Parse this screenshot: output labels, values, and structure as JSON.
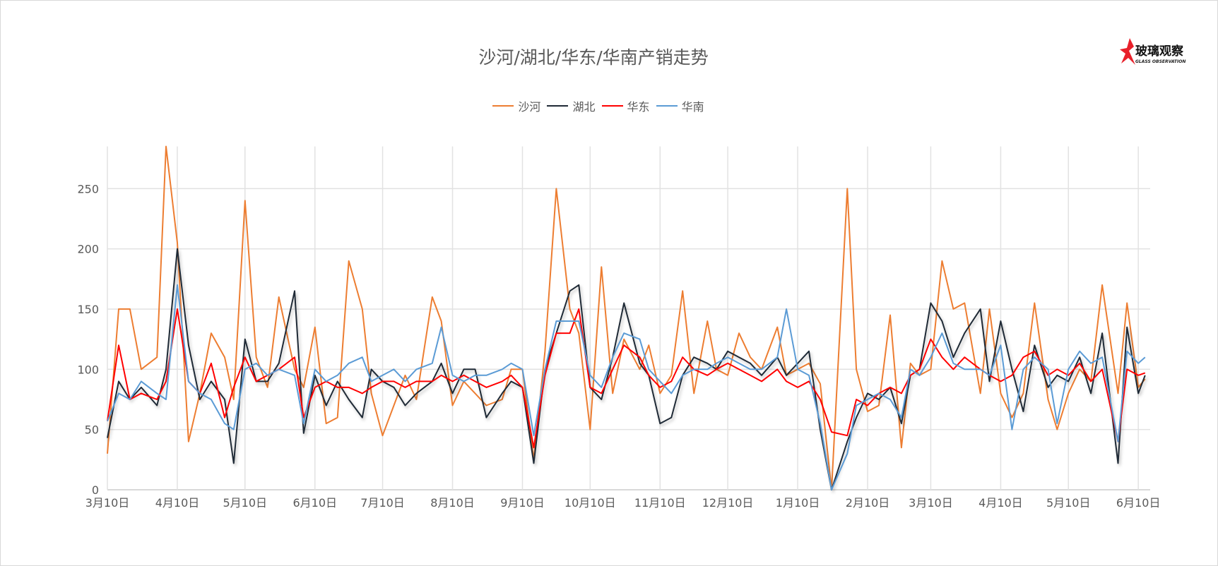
{
  "logo": {
    "text_cn": "玻璃观察",
    "text_en": "GLASS OBSERVATION"
  },
  "chart_data": {
    "type": "line",
    "title": "沙河/湖北/华东/华南产销走势",
    "legend_position": "top",
    "grid": true,
    "ylim": [
      0,
      285
    ],
    "y_ticks": [
      "0",
      "50",
      "100",
      "150",
      "200",
      "250"
    ],
    "x_ticks": [
      "3月10日",
      "4月10日",
      "5月10日",
      "6月10日",
      "7月10日",
      "8月10日",
      "9月10日",
      "10月10日",
      "11月10日",
      "12月10日",
      "1月10日",
      "2月10日",
      "3月10日",
      "4月10日",
      "5月10日",
      "6月10日"
    ],
    "x": [
      "3月10日",
      "3月15日",
      "3月20日",
      "3月25日",
      "4月1日",
      "4月5日",
      "4月10日",
      "4月15日",
      "4月20日",
      "4月25日",
      "5月1日",
      "5月5日",
      "5月10日",
      "5月15日",
      "5月20日",
      "5月25日",
      "6月1日",
      "6月5日",
      "6月10日",
      "6月15日",
      "6月20日",
      "6月25日",
      "7月1日",
      "7月5日",
      "7月10日",
      "7月15日",
      "7月20日",
      "7月25日",
      "8月1日",
      "8月5日",
      "8月10日",
      "8月15日",
      "8月20日",
      "8月25日",
      "9月1日",
      "9月5日",
      "9月10日",
      "9月15日",
      "9月20日",
      "9月25日",
      "10月1日",
      "10月5日",
      "10月10日",
      "10月15日",
      "10月20日",
      "10月25日",
      "11月1日",
      "11月5日",
      "11月10日",
      "11月15日",
      "11月20日",
      "11月25日",
      "12月1日",
      "12月5日",
      "12月10日",
      "12月15日",
      "12月20日",
      "12月25日",
      "1月1日",
      "1月5日",
      "1月10日",
      "1月15日",
      "1月20日",
      "1月25日",
      "2月1日",
      "2月5日",
      "2月10日",
      "2月15日",
      "2月20日",
      "2月25日",
      "3月1日",
      "3月5日",
      "3月10日",
      "3月15日",
      "3月20日",
      "3月25日",
      "4月1日",
      "4月5日",
      "4月10日",
      "4月15日",
      "4月20日",
      "4月25日",
      "5月1日",
      "5月5日",
      "5月10日",
      "5月15日",
      "5月20日",
      "5月25日",
      "6月1日",
      "6月5日",
      "6月10日",
      "6月13日"
    ],
    "series": [
      {
        "name": "沙河",
        "color": "#ed7d31",
        "values": [
          30,
          150,
          150,
          100,
          110,
          285,
          205,
          40,
          80,
          130,
          110,
          75,
          240,
          110,
          85,
          160,
          100,
          85,
          135,
          55,
          60,
          190,
          150,
          80,
          45,
          70,
          95,
          75,
          160,
          140,
          70,
          90,
          80,
          70,
          75,
          100,
          100,
          25,
          115,
          250,
          150,
          130,
          50,
          185,
          80,
          125,
          100,
          120,
          80,
          95,
          165,
          80,
          140,
          100,
          95,
          130,
          110,
          100,
          135,
          95,
          100,
          105,
          88,
          0,
          250,
          100,
          65,
          70,
          145,
          35,
          105,
          95,
          100,
          190,
          150,
          155,
          80,
          150,
          80,
          60,
          80,
          155,
          75,
          50,
          80,
          100,
          90,
          170,
          80,
          155,
          85,
          92
        ]
      },
      {
        "name": "湖北",
        "color": "#1f2a36",
        "values": [
          43,
          90,
          75,
          85,
          70,
          100,
          200,
          120,
          75,
          90,
          75,
          22,
          125,
          90,
          90,
          105,
          165,
          47,
          95,
          70,
          90,
          75,
          60,
          100,
          90,
          85,
          70,
          80,
          90,
          105,
          80,
          100,
          100,
          60,
          80,
          90,
          85,
          22,
          100,
          130,
          165,
          170,
          85,
          75,
          110,
          155,
          105,
          95,
          55,
          60,
          95,
          110,
          105,
          100,
          115,
          110,
          105,
          95,
          110,
          95,
          105,
          115,
          50,
          0,
          40,
          60,
          80,
          75,
          85,
          55,
          95,
          100,
          155,
          140,
          110,
          130,
          150,
          90,
          140,
          100,
          65,
          120,
          85,
          95,
          90,
          110,
          80,
          130,
          22,
          135,
          80,
          95
        ]
      },
      {
        "name": "华东",
        "color": "#ff0000",
        "values": [
          57,
          120,
          75,
          80,
          75,
          90,
          150,
          90,
          80,
          105,
          60,
          85,
          110,
          90,
          95,
          100,
          110,
          60,
          85,
          90,
          85,
          85,
          80,
          85,
          90,
          90,
          85,
          90,
          90,
          95,
          90,
          95,
          90,
          85,
          90,
          95,
          85,
          35,
          95,
          130,
          130,
          150,
          85,
          80,
          100,
          120,
          110,
          95,
          85,
          90,
          110,
          100,
          95,
          100,
          105,
          100,
          95,
          90,
          100,
          90,
          85,
          90,
          75,
          48,
          45,
          75,
          70,
          80,
          85,
          80,
          95,
          100,
          125,
          110,
          100,
          110,
          100,
          95,
          90,
          95,
          110,
          115,
          95,
          100,
          95,
          105,
          90,
          100,
          40,
          100,
          95,
          97
        ]
      },
      {
        "name": "华南",
        "color": "#5b9bd5",
        "values": [
          57,
          80,
          75,
          90,
          80,
          75,
          170,
          90,
          80,
          75,
          55,
          50,
          100,
          105,
          95,
          100,
          95,
          55,
          100,
          90,
          95,
          105,
          110,
          90,
          95,
          100,
          90,
          100,
          105,
          135,
          95,
          90,
          95,
          95,
          100,
          105,
          100,
          45,
          100,
          140,
          140,
          140,
          95,
          85,
          110,
          130,
          125,
          100,
          90,
          80,
          95,
          100,
          100,
          105,
          110,
          105,
          100,
          100,
          110,
          150,
          100,
          95,
          55,
          0,
          30,
          70,
          75,
          80,
          75,
          60,
          100,
          95,
          110,
          130,
          105,
          100,
          100,
          95,
          120,
          50,
          100,
          110,
          100,
          55,
          100,
          115,
          105,
          110,
          40,
          115,
          105,
          110
        ]
      }
    ]
  }
}
